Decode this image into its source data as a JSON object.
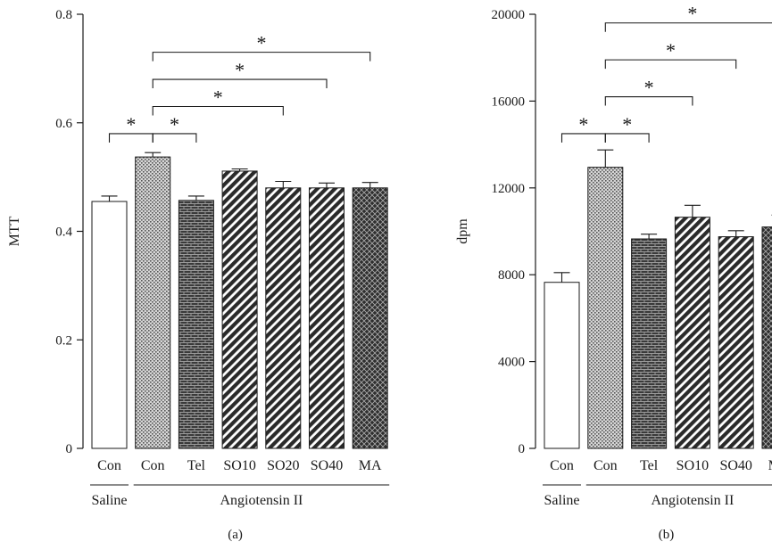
{
  "chart_data": [
    {
      "type": "bar",
      "panel_label": "(a)",
      "ylabel": "MTT",
      "ylim": [
        0,
        0.8
      ],
      "yticks": [
        "0",
        "0.2",
        "0.4",
        "0.6",
        "0.8"
      ],
      "categories": [
        "Con",
        "Con",
        "Tel",
        "SO10",
        "SO20",
        "SO40",
        "MA"
      ],
      "values": [
        0.455,
        0.537,
        0.457,
        0.511,
        0.48,
        0.48,
        0.48
      ],
      "errors": [
        0.01,
        0.008,
        0.008,
        0.004,
        0.012,
        0.009,
        0.01
      ],
      "patterns": [
        "white",
        "dots",
        "brick",
        "diag",
        "diag",
        "diag",
        "cross"
      ],
      "groups": [
        {
          "label": "Saline",
          "from": 0,
          "to": 0
        },
        {
          "label": "Angiotensin II",
          "from": 1,
          "to": 6
        }
      ],
      "significance": [
        {
          "from": 0,
          "to": 1,
          "label": "*"
        },
        {
          "from": 1,
          "to": 2,
          "label": "*"
        },
        {
          "from": 1,
          "to": 4,
          "label": "*"
        },
        {
          "from": 1,
          "to": 5,
          "label": "*"
        },
        {
          "from": 1,
          "to": 6,
          "label": "*"
        }
      ],
      "bracket_levels": [
        0.58,
        0.58,
        0.63,
        0.68,
        0.73
      ]
    },
    {
      "type": "bar",
      "panel_label": "(b)",
      "ylabel": "dpm",
      "ylim": [
        0,
        20000
      ],
      "yticks": [
        "0",
        "4000",
        "8000",
        "12000",
        "16000",
        "20000"
      ],
      "categories": [
        "Con",
        "Con",
        "Tel",
        "SO10",
        "SO40",
        "MA"
      ],
      "values": [
        7650,
        12950,
        9650,
        10650,
        9750,
        10200
      ],
      "errors": [
        450,
        800,
        220,
        550,
        280,
        550
      ],
      "patterns": [
        "white",
        "dots",
        "brick",
        "diag",
        "diag",
        "cross"
      ],
      "groups": [
        {
          "label": "Saline",
          "from": 0,
          "to": 0
        },
        {
          "label": "Angiotensin II",
          "from": 1,
          "to": 5
        }
      ],
      "significance": [
        {
          "from": 0,
          "to": 1,
          "label": "*"
        },
        {
          "from": 1,
          "to": 2,
          "label": "*"
        },
        {
          "from": 1,
          "to": 3,
          "label": "*"
        },
        {
          "from": 1,
          "to": 4,
          "label": "*"
        },
        {
          "from": 1,
          "to": 5,
          "label": "*"
        }
      ],
      "bracket_levels": [
        14500,
        14500,
        16200,
        17900,
        19600
      ]
    }
  ]
}
